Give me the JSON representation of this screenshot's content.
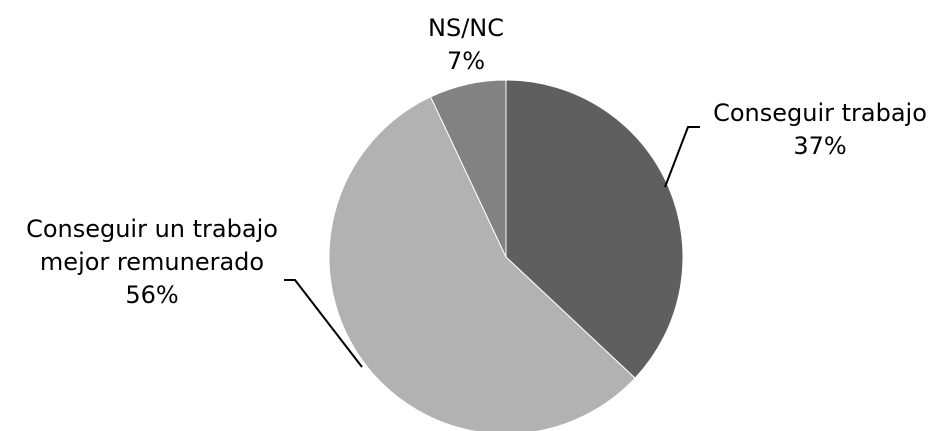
{
  "chart_data": {
    "type": "pie",
    "categories": [
      "Conseguir trabajo",
      "Conseguir un trabajo mejor remunerado",
      "NS/NC"
    ],
    "values": [
      37,
      56,
      7
    ],
    "label_lines": [
      [
        "Conseguir trabajo"
      ],
      [
        "Conseguir un trabajo",
        "mejor remunerado"
      ],
      [
        "NS/NC"
      ]
    ],
    "value_labels": [
      "37%",
      "56%",
      "7%"
    ],
    "colors": [
      "#5f5f5f",
      "#b2b2b2",
      "#828282"
    ],
    "start": "12 o'clock",
    "direction": "clockwise",
    "title": "",
    "legend": "none"
  }
}
